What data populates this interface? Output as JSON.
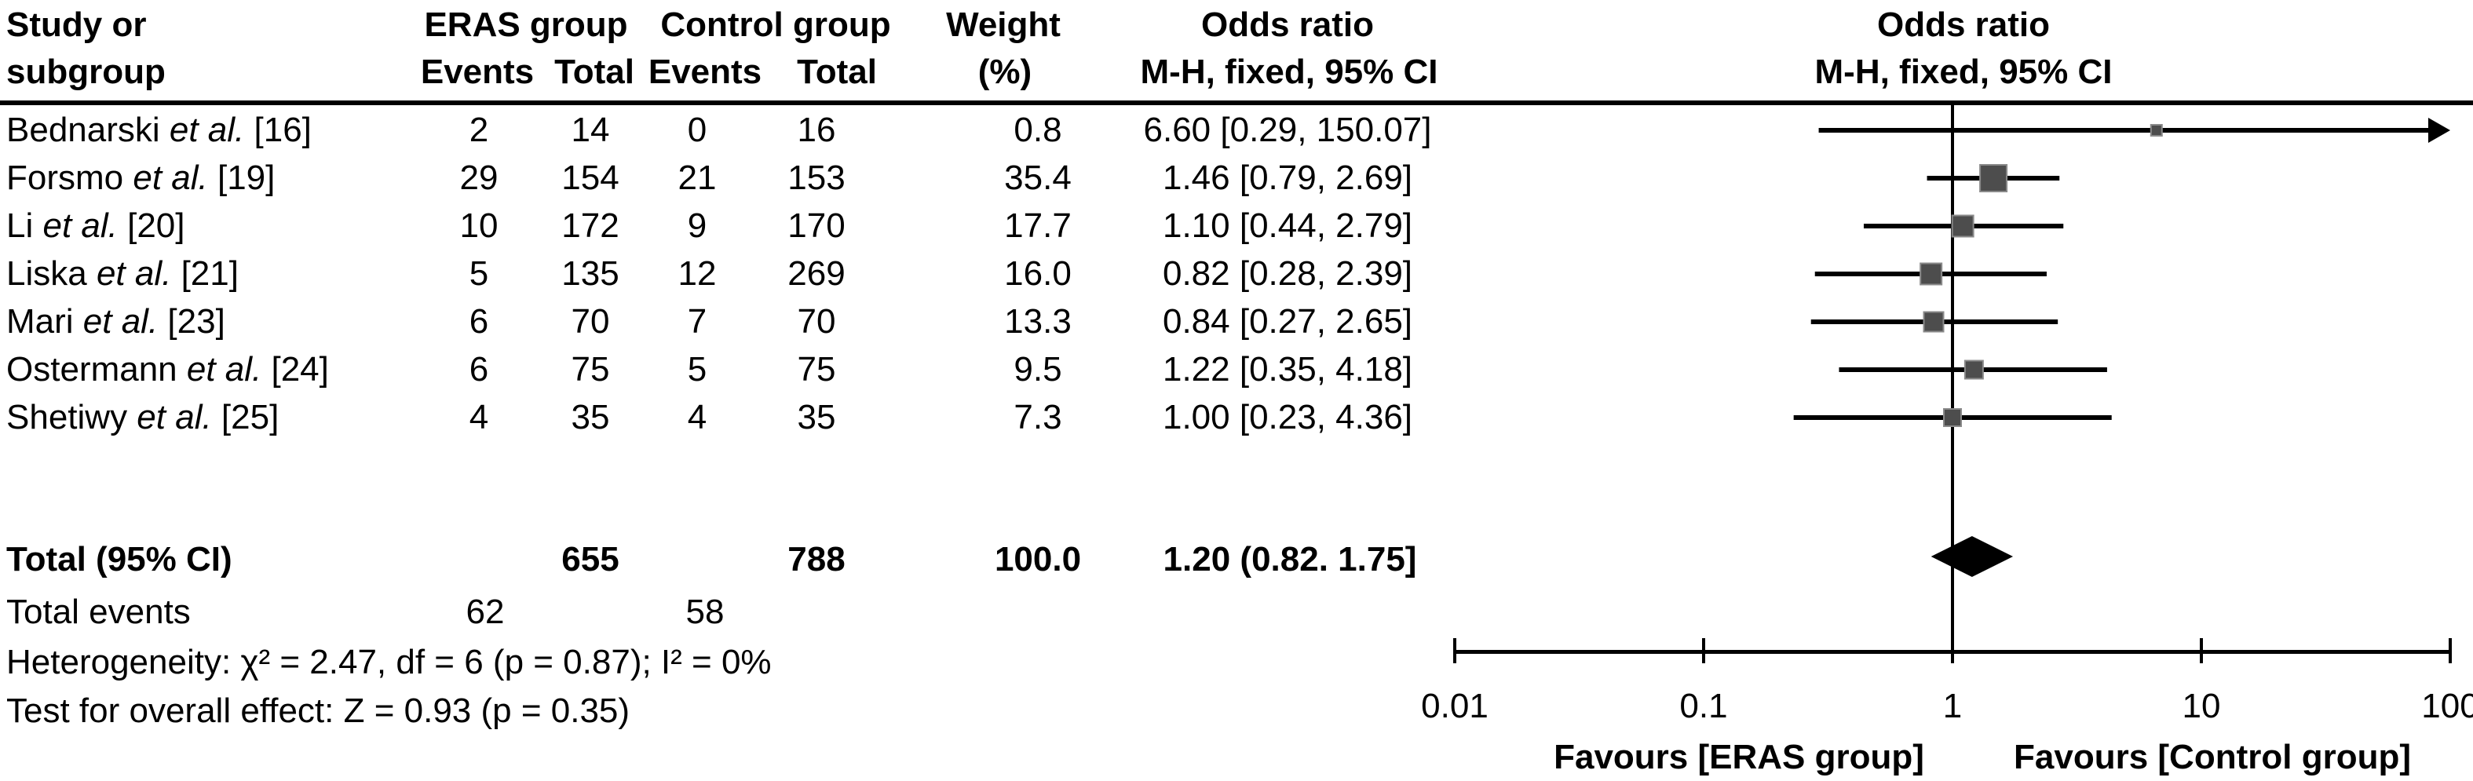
{
  "colors": {
    "text": "#000000",
    "line": "#000000",
    "marker_fill": "#4d4d4d",
    "marker_stroke": "#8a8a8a",
    "diamond": "#000000",
    "background": "#ffffff"
  },
  "header": {
    "study_line1": "Study or",
    "study_line2": "subgroup",
    "eras_group": "ERAS group",
    "control_group": "Control group",
    "eras_events": "Events",
    "eras_total": "Total",
    "control_events": "Events",
    "control_total": "Total",
    "weight_line1": "Weight",
    "weight_line2": "(%)",
    "or_line1": "Odds ratio",
    "or_line2": "M-H, fixed, 95% CI",
    "plot_or_line1": "Odds ratio",
    "plot_or_line2": "M-H, fixed, 95% CI"
  },
  "totals": {
    "label": "Total (95% CI)",
    "eras_total": "655",
    "control_total": "788",
    "weight": "100.0",
    "or_text": "1.20 (0.82. 1.75]",
    "events_label": "Total events",
    "eras_events": "62",
    "control_events": "58"
  },
  "footer": {
    "heterogeneity": "Heterogeneity: χ² = 2.47, df = 6 (p = 0.87); I² = 0%",
    "overall_effect": "Test for overall effect: Z = 0.93 (p = 0.35)"
  },
  "chart_data": {
    "type": "forest",
    "x_scale": "log10",
    "axis_range": [
      0.01,
      100
    ],
    "axis_ticks": [
      "0.01",
      "0.1",
      "1",
      "10",
      "100"
    ],
    "null_line_value": 1,
    "favours_left": "Favours [ERAS group]",
    "favours_right": "Favours [Control group]",
    "studies": [
      {
        "name": "Bednarski",
        "etal": "et al.",
        "ref": "[16]",
        "eras_events": "2",
        "eras_total": "14",
        "control_events": "0",
        "control_total": "16",
        "weight_text": "0.8",
        "or_text": "6.60 [0.29, 150.07]",
        "or": 6.6,
        "ci": [
          0.29,
          150.07
        ],
        "weight": 0.8
      },
      {
        "name": "Forsmo",
        "etal": "et al.",
        "ref": "[19]",
        "eras_events": "29",
        "eras_total": "154",
        "control_events": "21",
        "control_total": "153",
        "weight_text": "35.4",
        "or_text": "1.46 [0.79, 2.69]",
        "or": 1.46,
        "ci": [
          0.79,
          2.69
        ],
        "weight": 35.4
      },
      {
        "name": "Li",
        "etal": "et al.",
        "ref": "[20]",
        "eras_events": "10",
        "eras_total": "172",
        "control_events": "9",
        "control_total": "170",
        "weight_text": "17.7",
        "or_text": "1.10 [0.44, 2.79]",
        "or": 1.1,
        "ci": [
          0.44,
          2.79
        ],
        "weight": 17.7
      },
      {
        "name": "Liska",
        "etal": "et al.",
        "ref": "[21]",
        "eras_events": "5",
        "eras_total": "135",
        "control_events": "12",
        "control_total": "269",
        "weight_text": "16.0",
        "or_text": "0.82 [0.28, 2.39]",
        "or": 0.82,
        "ci": [
          0.28,
          2.39
        ],
        "weight": 16.0
      },
      {
        "name": "Mari",
        "etal": "et al.",
        "ref": "[23]",
        "eras_events": "6",
        "eras_total": "70",
        "control_events": "7",
        "control_total": "70",
        "weight_text": "13.3",
        "or_text": "0.84 [0.27, 2.65]",
        "or": 0.84,
        "ci": [
          0.27,
          2.65
        ],
        "weight": 13.3
      },
      {
        "name": "Ostermann",
        "etal": "et al.",
        "ref": "[24]",
        "eras_events": "6",
        "eras_total": "75",
        "control_events": "5",
        "control_total": "75",
        "weight_text": "9.5",
        "or_text": "1.22 [0.35, 4.18]",
        "or": 1.22,
        "ci": [
          0.35,
          4.18
        ],
        "weight": 9.5
      },
      {
        "name": "Shetiwy",
        "etal": "et al.",
        "ref": "[25]",
        "eras_events": "4",
        "eras_total": "35",
        "control_events": "4",
        "control_total": "35",
        "weight_text": "7.3",
        "or_text": "1.00 [0.23, 4.36]",
        "or": 1.0,
        "ci": [
          0.23,
          4.36
        ],
        "weight": 7.3
      }
    ],
    "total": {
      "or": 1.2,
      "ci": [
        0.82,
        1.75
      ],
      "weight": 100.0
    }
  }
}
